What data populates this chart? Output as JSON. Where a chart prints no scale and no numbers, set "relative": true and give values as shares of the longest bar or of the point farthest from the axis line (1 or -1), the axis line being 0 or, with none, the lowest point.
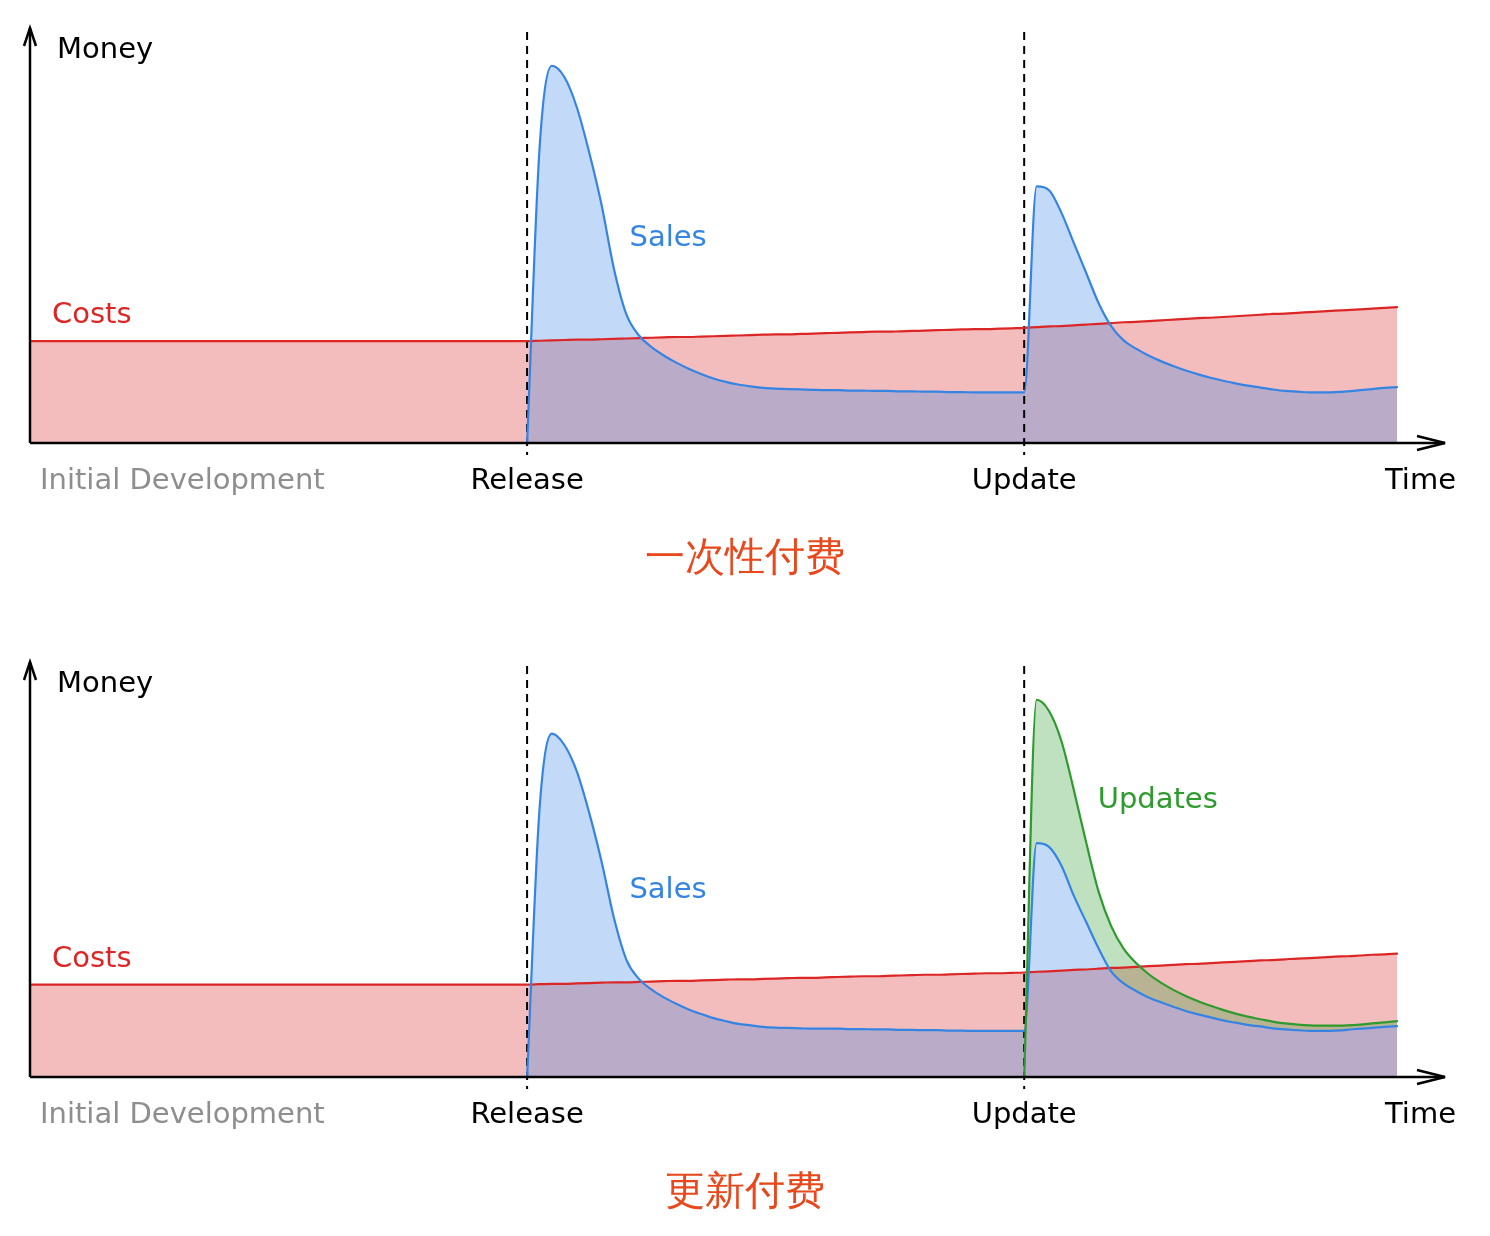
{
  "chart_data": [
    {
      "type": "area",
      "title": "一次性付费",
      "xlabel": "Time",
      "ylabel": "Money",
      "relative": true,
      "categories": [
        null,
        null,
        null,
        null,
        null,
        null,
        null,
        null,
        null,
        null,
        null,
        null,
        null,
        null,
        null,
        null,
        null,
        null,
        null,
        null,
        null,
        null,
        null,
        null,
        null,
        null,
        null,
        null,
        null,
        null,
        null,
        null,
        null,
        null,
        null,
        null,
        null,
        null,
        null,
        null,
        "Release",
        null,
        null,
        null,
        null,
        null,
        null,
        null,
        null,
        null,
        null,
        null,
        null,
        null,
        null,
        null,
        null,
        null,
        null,
        null,
        null,
        null,
        null,
        null,
        null,
        null,
        null,
        null,
        null,
        null,
        null,
        null,
        null,
        null,
        null,
        null,
        null,
        null,
        null,
        null,
        "Update",
        null,
        null,
        null,
        null,
        null,
        null,
        null,
        null,
        null,
        null,
        null,
        null,
        null,
        null,
        null,
        null,
        null,
        null,
        null,
        null,
        null,
        null,
        null,
        null,
        null,
        null,
        null,
        null,
        null,
        null
      ],
      "series": [
        {
          "name": "Costs",
          "color": "#dc2626",
          "values": [
            0.27,
            0.27,
            0.27,
            0.27,
            0.27,
            0.27,
            0.27,
            0.27,
            0.27,
            0.27,
            0.27,
            0.27,
            0.27,
            0.27,
            0.27,
            0.27,
            0.27,
            0.27,
            0.27,
            0.27,
            0.27,
            0.27,
            0.27,
            0.27,
            0.27,
            0.27,
            0.27,
            0.27,
            0.27,
            0.27,
            0.27,
            0.27,
            0.27,
            0.27,
            0.27,
            0.27,
            0.27,
            0.27,
            0.27,
            0.27,
            0.27,
            0.271,
            0.272,
            0.273,
            0.274,
            0.274,
            0.275,
            0.276,
            0.277,
            0.278,
            0.279,
            0.28,
            0.281,
            0.281,
            0.282,
            0.283,
            0.284,
            0.285,
            0.286,
            0.287,
            0.288,
            0.288,
            0.289,
            0.29,
            0.291,
            0.292,
            0.293,
            0.294,
            0.295,
            0.295,
            0.296,
            0.297,
            0.298,
            0.299,
            0.3,
            0.301,
            0.302,
            0.302,
            0.303,
            0.304,
            0.305,
            0.307,
            0.309,
            0.31,
            0.312,
            0.314,
            0.316,
            0.318,
            0.32,
            0.321,
            0.323,
            0.325,
            0.327,
            0.329,
            0.331,
            0.332,
            0.334,
            0.336,
            0.338,
            0.34,
            0.342,
            0.343,
            0.345,
            0.347,
            0.349,
            0.351,
            0.352,
            0.354,
            0.356,
            0.358,
            0.36
          ]
        },
        {
          "name": "Sales",
          "color": "#3584e4",
          "values": [
            null,
            null,
            null,
            null,
            null,
            null,
            null,
            null,
            null,
            null,
            null,
            null,
            null,
            null,
            null,
            null,
            null,
            null,
            null,
            null,
            null,
            null,
            null,
            null,
            null,
            null,
            null,
            null,
            null,
            null,
            null,
            null,
            null,
            null,
            null,
            null,
            null,
            null,
            null,
            null,
            0,
            0.78,
            1,
            0.97,
            0.89,
            0.77,
            0.63,
            0.46,
            0.34,
            0.285,
            0.255,
            0.232,
            0.213,
            0.197,
            0.183,
            0.171,
            0.162,
            0.155,
            0.15,
            0.146,
            0.144,
            0.143,
            0.142,
            0.141,
            0.14,
            0.14,
            0.139,
            0.139,
            0.138,
            0.138,
            0.137,
            0.137,
            0.136,
            0.136,
            0.135,
            0.135,
            0.134,
            0.134,
            0.134,
            0.134,
            0.134,
            0.68,
            0.67,
            0.61,
            0.53,
            0.45,
            0.37,
            0.31,
            0.272,
            0.25,
            0.232,
            0.217,
            0.204,
            0.192,
            0.182,
            0.173,
            0.165,
            0.158,
            0.152,
            0.147,
            0.142,
            0.138,
            0.136,
            0.134,
            0.134,
            0.135,
            0.137,
            0.14,
            0.143,
            0.146,
            0.148
          ]
        }
      ],
      "ref_lines": [
        {
          "axis": "x",
          "value": "Release",
          "color": "#000000",
          "line_style": "dashed"
        },
        {
          "axis": "x",
          "value": "Update",
          "color": "#000000",
          "line_style": "dashed"
        }
      ],
      "annotations": [
        "Initial Development"
      ]
    },
    {
      "type": "area",
      "title": "更新付费",
      "xlabel": "Time",
      "ylabel": "Money",
      "relative": true,
      "categories": [
        null,
        null,
        null,
        null,
        null,
        null,
        null,
        null,
        null,
        null,
        null,
        null,
        null,
        null,
        null,
        null,
        null,
        null,
        null,
        null,
        null,
        null,
        null,
        null,
        null,
        null,
        null,
        null,
        null,
        null,
        null,
        null,
        null,
        null,
        null,
        null,
        null,
        null,
        null,
        null,
        "Release",
        null,
        null,
        null,
        null,
        null,
        null,
        null,
        null,
        null,
        null,
        null,
        null,
        null,
        null,
        null,
        null,
        null,
        null,
        null,
        null,
        null,
        null,
        null,
        null,
        null,
        null,
        null,
        null,
        null,
        null,
        null,
        null,
        null,
        null,
        null,
        null,
        null,
        null,
        null,
        "Update",
        null,
        null,
        null,
        null,
        null,
        null,
        null,
        null,
        null,
        null,
        null,
        null,
        null,
        null,
        null,
        null,
        null,
        null,
        null,
        null,
        null,
        null,
        null,
        null,
        null,
        null,
        null,
        null,
        null,
        null
      ],
      "series": [
        {
          "name": "Costs",
          "color": "#dc2626",
          "values": [
            0.245,
            0.245,
            0.245,
            0.245,
            0.245,
            0.245,
            0.245,
            0.245,
            0.245,
            0.245,
            0.245,
            0.245,
            0.245,
            0.245,
            0.245,
            0.245,
            0.245,
            0.245,
            0.245,
            0.245,
            0.245,
            0.245,
            0.245,
            0.245,
            0.245,
            0.245,
            0.245,
            0.245,
            0.245,
            0.245,
            0.245,
            0.245,
            0.245,
            0.245,
            0.245,
            0.245,
            0.245,
            0.245,
            0.245,
            0.245,
            0.245,
            0.246,
            0.247,
            0.247,
            0.248,
            0.249,
            0.25,
            0.251,
            0.251,
            0.252,
            0.253,
            0.254,
            0.255,
            0.255,
            0.256,
            0.257,
            0.258,
            0.259,
            0.259,
            0.26,
            0.261,
            0.262,
            0.263,
            0.263,
            0.264,
            0.265,
            0.266,
            0.267,
            0.267,
            0.268,
            0.269,
            0.27,
            0.271,
            0.271,
            0.272,
            0.273,
            0.274,
            0.275,
            0.275,
            0.276,
            0.277,
            0.279,
            0.28,
            0.282,
            0.284,
            0.285,
            0.287,
            0.289,
            0.29,
            0.292,
            0.294,
            0.295,
            0.297,
            0.299,
            0.3,
            0.302,
            0.304,
            0.305,
            0.307,
            0.309,
            0.31,
            0.312,
            0.314,
            0.315,
            0.317,
            0.319,
            0.32,
            0.322,
            0.324,
            0.325,
            0.327
          ]
        },
        {
          "name": "Sales",
          "color": "#3584e4",
          "values": [
            null,
            null,
            null,
            null,
            null,
            null,
            null,
            null,
            null,
            null,
            null,
            null,
            null,
            null,
            null,
            null,
            null,
            null,
            null,
            null,
            null,
            null,
            null,
            null,
            null,
            null,
            null,
            null,
            null,
            null,
            null,
            null,
            null,
            null,
            null,
            null,
            null,
            null,
            null,
            null,
            0,
            0.71,
            0.91,
            0.88,
            0.81,
            0.7,
            0.57,
            0.42,
            0.31,
            0.26,
            0.232,
            0.211,
            0.194,
            0.179,
            0.167,
            0.156,
            0.148,
            0.141,
            0.137,
            0.133,
            0.131,
            0.13,
            0.129,
            0.128,
            0.128,
            0.128,
            0.127,
            0.127,
            0.126,
            0.126,
            0.125,
            0.125,
            0.124,
            0.124,
            0.123,
            0.123,
            0.122,
            0.122,
            0.122,
            0.122,
            0.122,
            0.62,
            0.61,
            0.56,
            0.48,
            0.41,
            0.34,
            0.28,
            0.248,
            0.228,
            0.211,
            0.198,
            0.186,
            0.175,
            0.166,
            0.158,
            0.15,
            0.144,
            0.138,
            0.134,
            0.129,
            0.126,
            0.124,
            0.122,
            0.122,
            0.123,
            0.125,
            0.128,
            0.13,
            0.133,
            0.135
          ]
        },
        {
          "name": "Updates",
          "color": "#2e9b2e",
          "values": [
            null,
            null,
            null,
            null,
            null,
            null,
            null,
            null,
            null,
            null,
            null,
            null,
            null,
            null,
            null,
            null,
            null,
            null,
            null,
            null,
            null,
            null,
            null,
            null,
            null,
            null,
            null,
            null,
            null,
            null,
            null,
            null,
            null,
            null,
            null,
            null,
            null,
            null,
            null,
            null,
            null,
            null,
            null,
            null,
            null,
            null,
            null,
            null,
            null,
            null,
            null,
            null,
            null,
            null,
            null,
            null,
            null,
            null,
            null,
            null,
            null,
            null,
            null,
            null,
            null,
            null,
            null,
            null,
            null,
            null,
            null,
            null,
            null,
            null,
            null,
            null,
            null,
            null,
            null,
            null,
            0,
            1,
            0.97,
            0.89,
            0.76,
            0.62,
            0.49,
            0.4,
            0.34,
            0.302,
            0.273,
            0.25,
            0.231,
            0.215,
            0.201,
            0.189,
            0.178,
            0.168,
            0.16,
            0.153,
            0.147,
            0.142,
            0.139,
            0.137,
            0.136,
            0.136,
            0.137,
            0.139,
            0.142,
            0.145,
            0.148
          ]
        }
      ],
      "ref_lines": [
        {
          "axis": "x",
          "value": "Release",
          "color": "#000000",
          "line_style": "dashed"
        },
        {
          "axis": "x",
          "value": "Update",
          "color": "#000000",
          "line_style": "dashed"
        }
      ],
      "annotations": [
        "Initial Development"
      ]
    }
  ]
}
